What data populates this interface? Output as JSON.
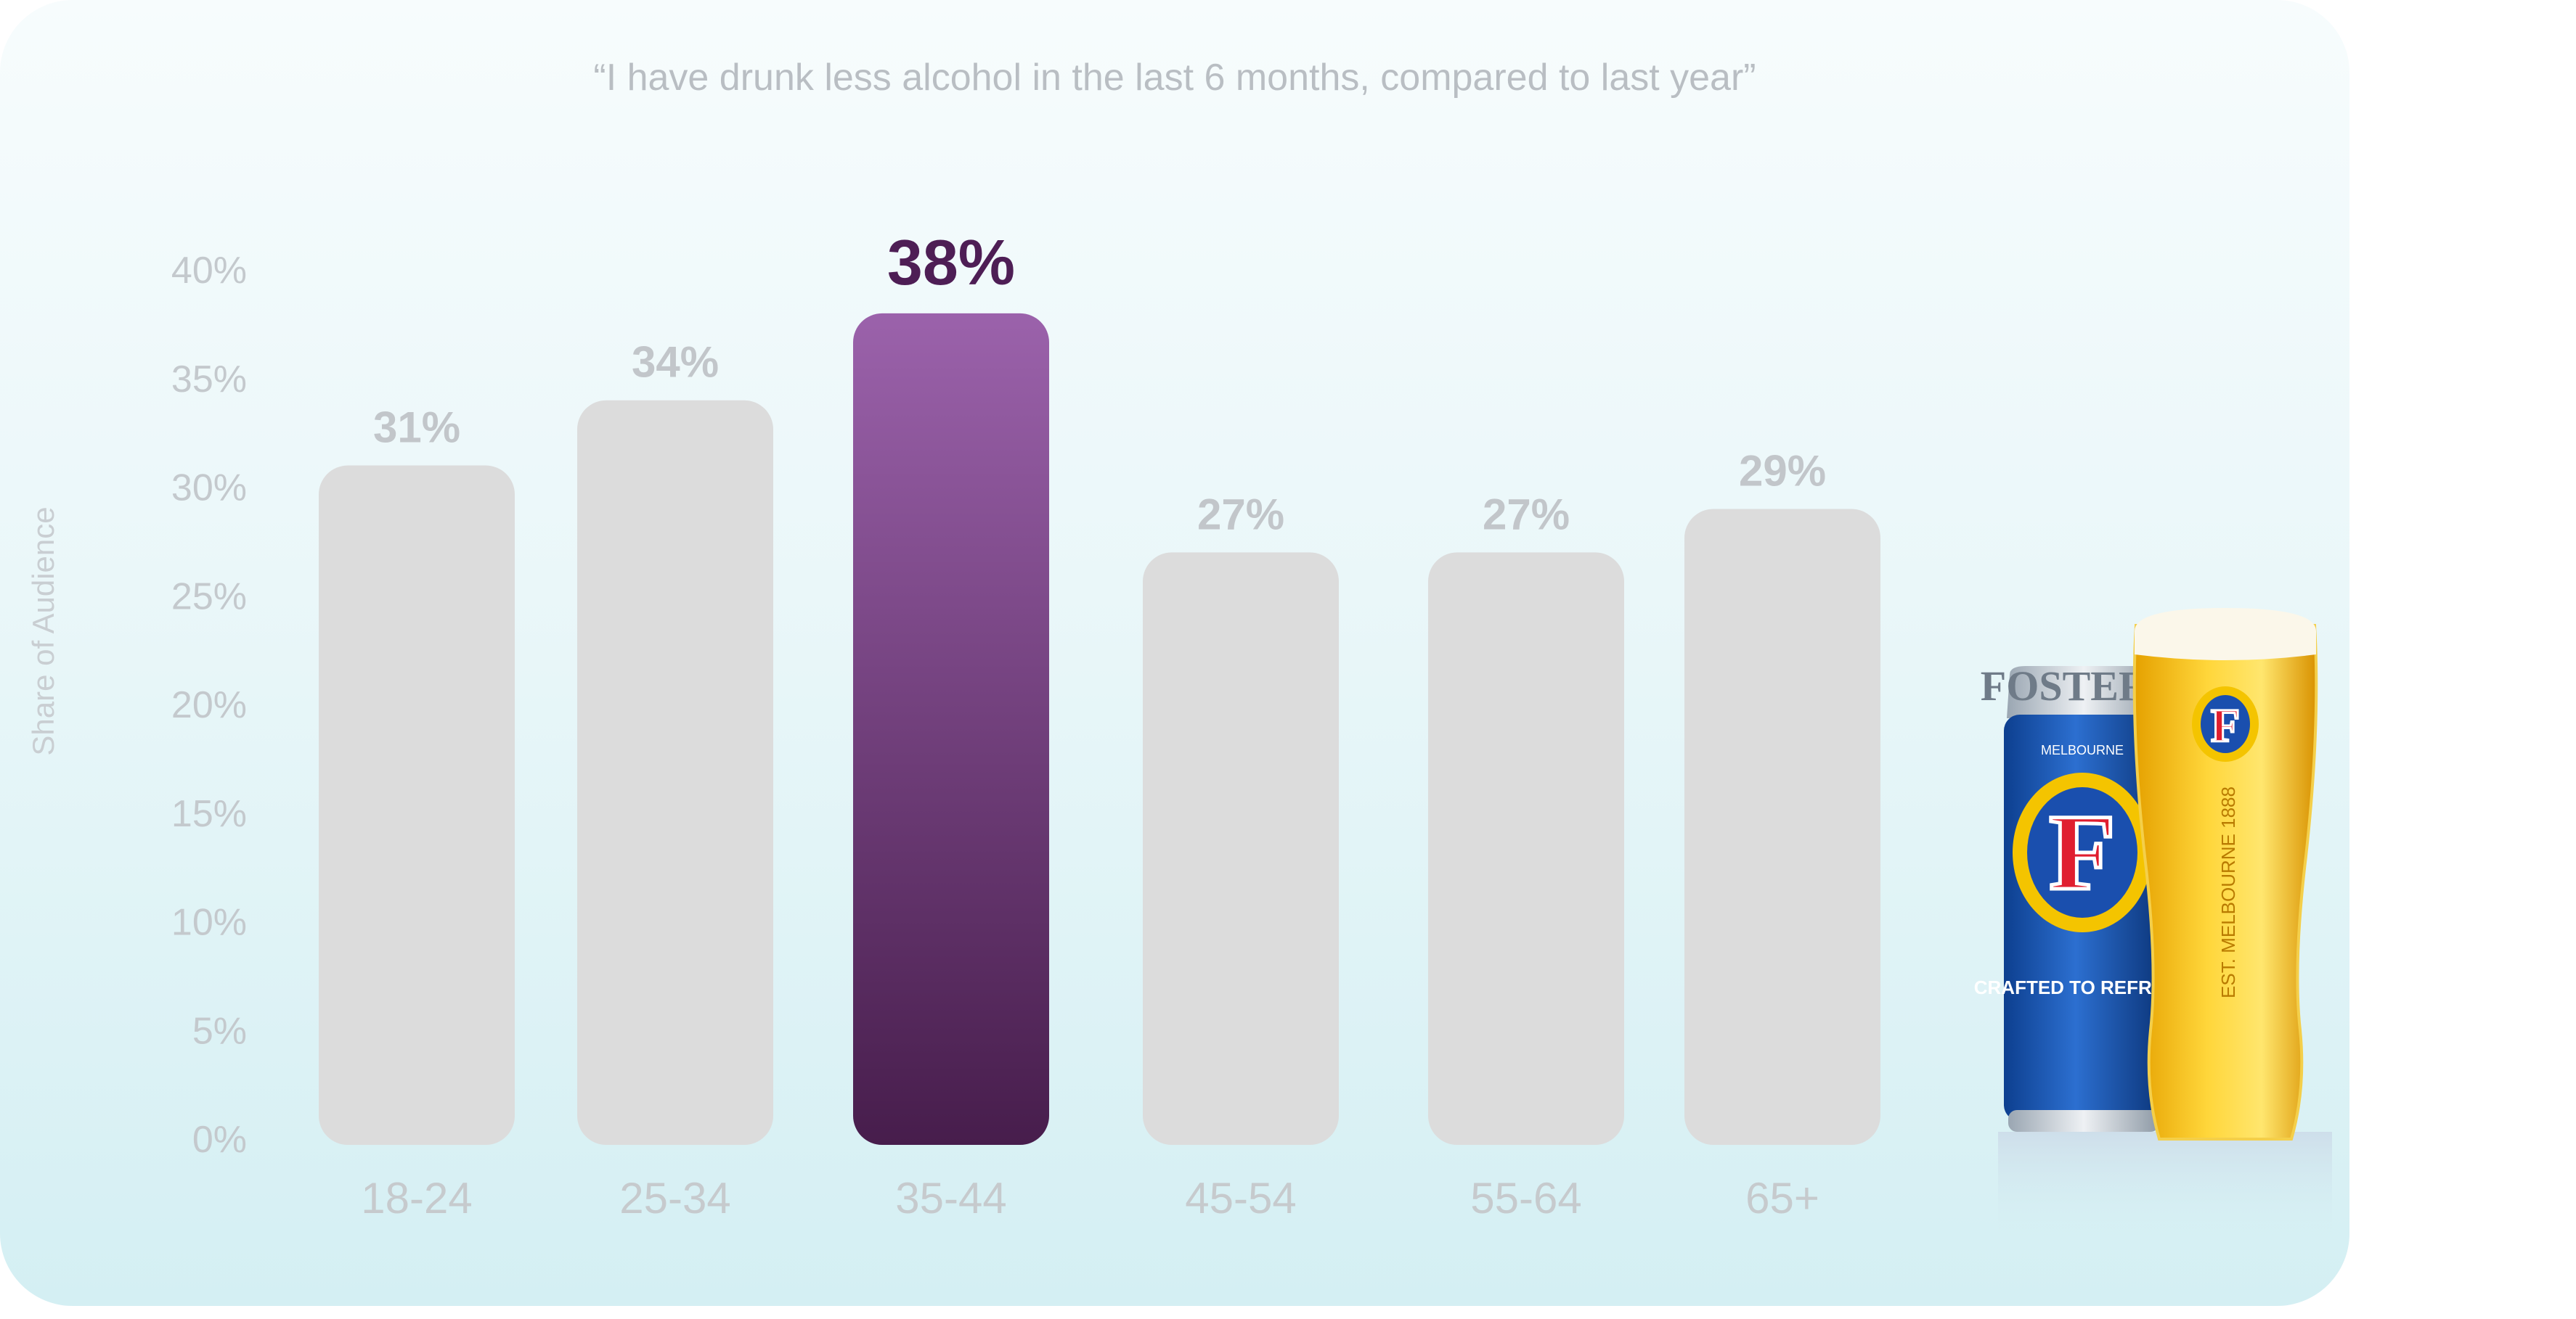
{
  "chart_data": {
    "type": "bar",
    "title": "“I have drunk less alcohol in the last 6 months, compared to last year”",
    "xlabel": "",
    "ylabel": "Share of Audience",
    "categories": [
      "18-24",
      "25-34",
      "35-44",
      "45-54",
      "55-64",
      "65+"
    ],
    "values": [
      31,
      34,
      38,
      27,
      27,
      29
    ],
    "data_labels": [
      "31%",
      "34%",
      "38%",
      "27%",
      "27%",
      "29%"
    ],
    "highlight_index": 2,
    "ylim": [
      0,
      40
    ],
    "yticks": [
      "0%",
      "5%",
      "10%",
      "15%",
      "20%",
      "25%",
      "30%",
      "35%",
      "40%"
    ],
    "grid": false,
    "legend": "none",
    "colors": {
      "bar": "#dcdcdc",
      "highlight_top": "#9b62ab",
      "highlight_bottom": "#471d4c",
      "highlight_label": "#4e1e55"
    }
  },
  "product_image": {
    "can_logo_text": "FOSTER'S",
    "can_sub_text": "MELBOURNE",
    "can_letter": "F",
    "can_tagline": "CRAFTED TO REFRESH",
    "glass_text": "EST. MELBOURNE 1888",
    "icons": [
      "beer-can-icon",
      "beer-glass-icon"
    ]
  }
}
